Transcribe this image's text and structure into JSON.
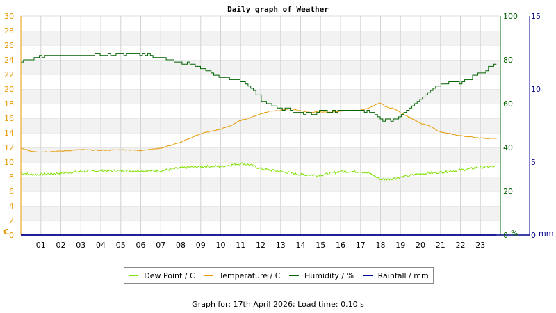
{
  "chart_data": {
    "type": "line",
    "title": "Daily graph of Weather",
    "x_ticks": [
      "01",
      "02",
      "03",
      "04",
      "05",
      "06",
      "07",
      "08",
      "09",
      "10",
      "11",
      "12",
      "13",
      "14",
      "15",
      "16",
      "17",
      "18",
      "19",
      "20",
      "21",
      "22",
      "23"
    ],
    "left_axis": {
      "label": "C",
      "ylim": [
        0,
        30
      ],
      "ticks": [
        0,
        2,
        4,
        6,
        8,
        10,
        12,
        14,
        16,
        18,
        20,
        22,
        24,
        26,
        28,
        30
      ],
      "color": "#e69a00"
    },
    "right_axis_humidity": {
      "label": "%",
      "ylim": [
        0,
        100
      ],
      "ticks": [
        0,
        20,
        40,
        60,
        80,
        100
      ],
      "color": "#006400"
    },
    "right_axis_rain": {
      "label": "mm",
      "ylim": [
        0,
        15
      ],
      "ticks": [
        0,
        5,
        10,
        15
      ],
      "color": "#00008b"
    },
    "grid": true,
    "legend_placement": "bottom",
    "series": [
      {
        "name": "Dew Point / C",
        "axis": "left",
        "color": "#7fe000",
        "x": [
          0,
          0.5,
          1,
          2,
          3,
          4,
          5,
          6,
          7,
          8,
          9,
          10,
          11,
          11.5,
          12,
          13,
          14,
          15,
          16,
          17,
          17.5,
          18,
          18.5,
          19,
          20,
          21,
          22,
          23,
          23.8
        ],
        "y": [
          8.5,
          8.3,
          8.3,
          8.5,
          8.7,
          8.8,
          8.8,
          8.8,
          8.8,
          9.2,
          9.4,
          9.4,
          9.8,
          9.6,
          9.1,
          8.7,
          8.3,
          8.2,
          8.7,
          8.7,
          8.4,
          7.6,
          7.7,
          7.9,
          8.4,
          8.6,
          8.9,
          9.3,
          9.4
        ],
        "style": "noisy"
      },
      {
        "name": "Temperature / C",
        "axis": "left",
        "color": "#e69a00",
        "x": [
          0,
          0.5,
          1,
          2,
          3,
          4,
          5,
          6,
          7,
          8,
          8.5,
          9,
          10,
          10.5,
          11,
          11.5,
          12,
          12.5,
          13,
          13.5,
          14,
          14.5,
          15,
          15.5,
          16,
          17,
          17.5,
          18,
          18.3,
          18.6,
          19,
          20,
          20.5,
          21,
          22,
          23,
          23.8
        ],
        "y": [
          11.9,
          11.5,
          11.4,
          11.5,
          11.7,
          11.6,
          11.7,
          11.6,
          11.9,
          12.7,
          13.3,
          13.9,
          14.5,
          15,
          15.7,
          16.1,
          16.6,
          17.0,
          17.1,
          17.3,
          17.0,
          16.8,
          16.9,
          16.8,
          17.0,
          17.1,
          17.5,
          18.1,
          17.5,
          17.4,
          16.8,
          15.3,
          14.9,
          14.1,
          13.6,
          13.3,
          13.2
        ],
        "style": "smooth"
      },
      {
        "name": "Humidity / %",
        "axis": "right",
        "color": "#006400",
        "x": [
          0,
          0.3,
          0.8,
          1.2,
          2,
          3,
          3.6,
          3.8,
          4,
          5,
          6,
          6.5,
          7,
          7.5,
          8,
          8.5,
          9,
          9.5,
          10,
          10.5,
          11,
          11.5,
          12,
          12.5,
          13,
          13.5,
          14,
          14.5,
          15,
          15.5,
          16,
          17,
          17.5,
          18,
          18.3,
          18.6,
          19,
          19.5,
          20,
          20.5,
          21,
          21.5,
          22,
          22.5,
          23,
          23.5,
          23.8
        ],
        "y": [
          79,
          80,
          81,
          82,
          82,
          82,
          82,
          83,
          82,
          83,
          83,
          82,
          81,
          80,
          79,
          78,
          76,
          74,
          72,
          71,
          70,
          68,
          62,
          59,
          58,
          57,
          56,
          55,
          57,
          56,
          57,
          57,
          56,
          53,
          52,
          53,
          55,
          58,
          62,
          66,
          69,
          70,
          70,
          72,
          74,
          77,
          78
        ],
        "style": "stepped"
      },
      {
        "name": "Rainfall / mm",
        "axis": "rain",
        "color": "#00008b",
        "x": [
          0,
          23.8
        ],
        "y": [
          0,
          0
        ],
        "style": "flat"
      }
    ]
  },
  "footer_text": "Graph for: 17th April 2026; Load time: 0.10 s"
}
